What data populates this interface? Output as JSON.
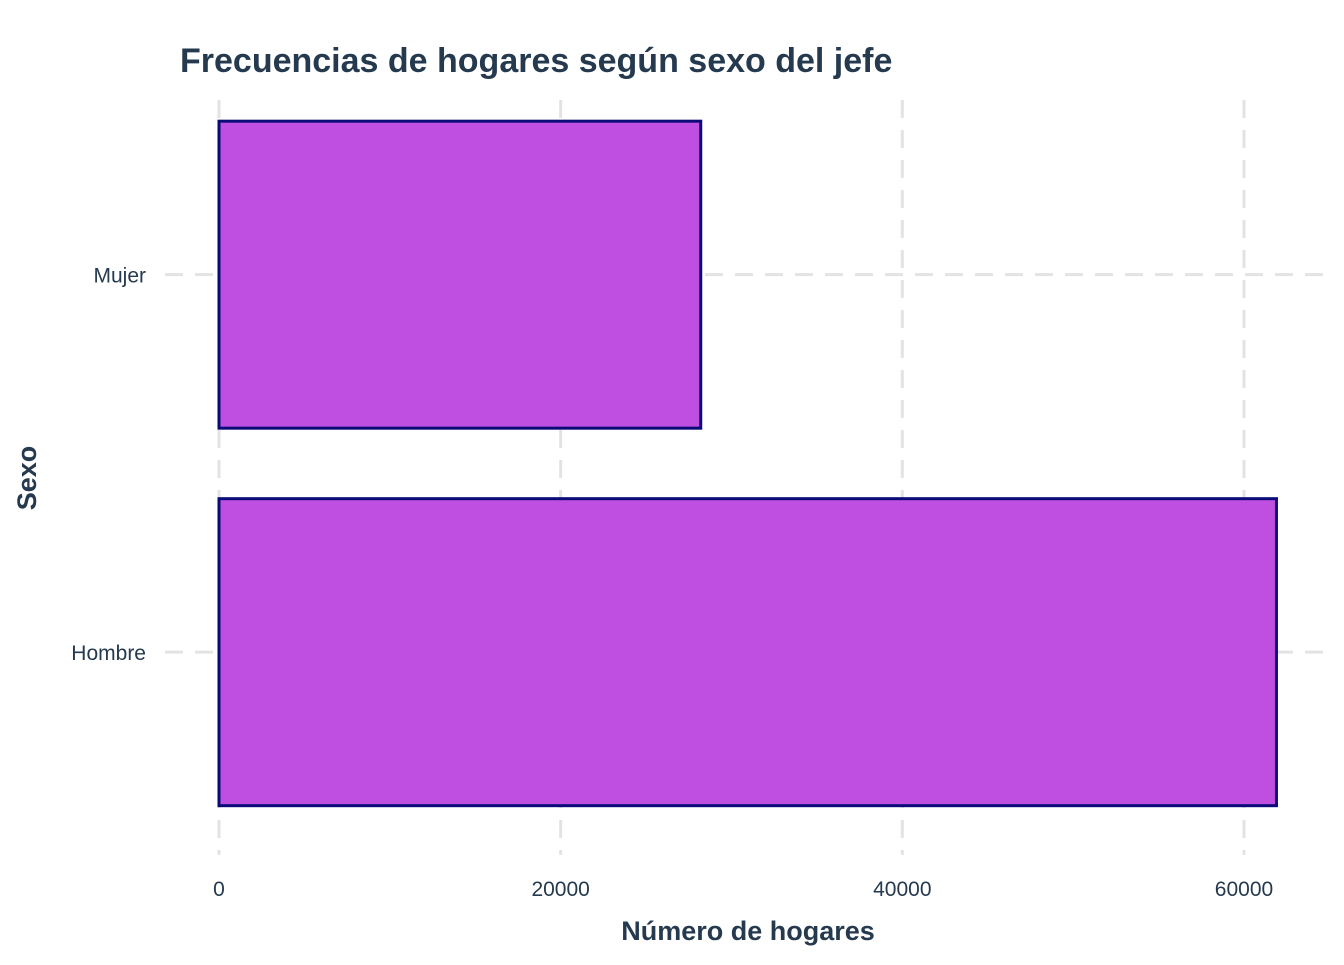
{
  "chart_data": {
    "type": "bar",
    "orientation": "horizontal",
    "title": "Frecuencias de hogares según sexo del jefe",
    "xlabel": "Número de hogares",
    "ylabel": "Sexo",
    "categories": [
      "Hombre",
      "Mujer"
    ],
    "values": [
      61900,
      28200
    ],
    "xlim": [
      0,
      62000
    ],
    "x_ticks": [
      0,
      20000,
      40000,
      60000
    ],
    "x_tick_labels": [
      "0",
      "20000",
      "40000",
      "60000"
    ],
    "grid": true,
    "legend": "none"
  },
  "colors": {
    "bar_fill": "#bf4fe0",
    "bar_outline": "#0a0a78",
    "text": "#253a4f",
    "grid": "#e3e3e3",
    "background": "#ffffff"
  }
}
